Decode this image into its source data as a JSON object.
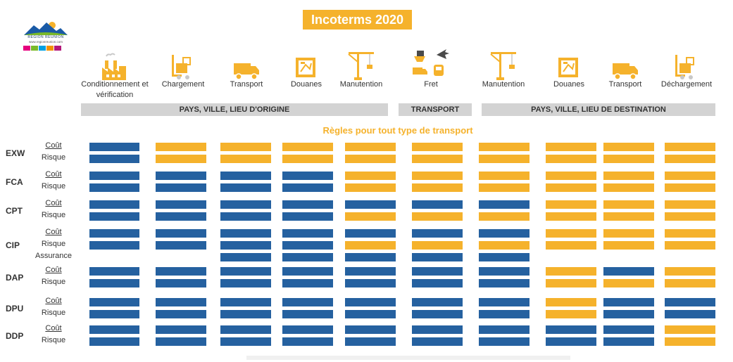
{
  "title": "Incoterms 2020",
  "logo": {
    "name": "RÉGION RÉUNION",
    "url": "www.regionreunion.com",
    "colors": [
      "#e6007e",
      "#7ab929",
      "#00a0e1",
      "#f39200",
      "#b3197a"
    ]
  },
  "columns": [
    {
      "label": "Conditionnement et vérification",
      "icon": "factory-icon"
    },
    {
      "label": "Chargement",
      "icon": "forklift-icon"
    },
    {
      "label": "Transport",
      "icon": "truck-icon"
    },
    {
      "label": "Douanes",
      "icon": "customs-document-icon"
    },
    {
      "label": "Manutention",
      "icon": "crane-icon"
    },
    {
      "label": "Fret",
      "icon": "multimodal-freight-icon"
    },
    {
      "label": "Manutention",
      "icon": "crane-icon"
    },
    {
      "label": "Douanes",
      "icon": "customs-document-icon"
    },
    {
      "label": "Transport",
      "icon": "truck-icon"
    },
    {
      "label": "Déchargement",
      "icon": "forklift-icon"
    }
  ],
  "bands": {
    "origin": "PAYS, VILLE, LIEU D'ORIGINE",
    "transport": "TRANSPORT",
    "destination": "PAYS, VILLE, LIEU DE DESTINATION"
  },
  "subtitle": "Règles pour tout type de transport",
  "legend_colors": {
    "seller": "#2561a0",
    "buyer": "#f5b22c"
  },
  "rows": [
    {
      "term": "EXW",
      "labels": [
        "Coût",
        "Risque"
      ],
      "lines": [
        [
          "B",
          "Y",
          "Y",
          "Y",
          "Y",
          "Y",
          "Y",
          "Y",
          "Y",
          "Y"
        ],
        [
          "B",
          "Y",
          "Y",
          "Y",
          "Y",
          "Y",
          "Y",
          "Y",
          "Y",
          "Y"
        ]
      ]
    },
    {
      "term": "FCA",
      "labels": [
        "Coût",
        "Risque"
      ],
      "lines": [
        [
          "B",
          "B",
          "B",
          "B",
          "Y",
          "Y",
          "Y",
          "Y",
          "Y",
          "Y"
        ],
        [
          "B",
          "B",
          "B",
          "B",
          "Y",
          "Y",
          "Y",
          "Y",
          "Y",
          "Y"
        ]
      ]
    },
    {
      "term": "CPT",
      "labels": [
        "Coût",
        "Risque"
      ],
      "lines": [
        [
          "B",
          "B",
          "B",
          "B",
          "B",
          "B",
          "B",
          "Y",
          "Y",
          "Y"
        ],
        [
          "B",
          "B",
          "B",
          "B",
          "Y",
          "Y",
          "Y",
          "Y",
          "Y",
          "Y"
        ]
      ]
    },
    {
      "term": "CIP",
      "labels": [
        "Coût",
        "Risque",
        "Assurance"
      ],
      "lines": [
        [
          "B",
          "B",
          "B",
          "B",
          "B",
          "B",
          "B",
          "Y",
          "Y",
          "Y"
        ],
        [
          "B",
          "B",
          "B",
          "B",
          "Y",
          "Y",
          "Y",
          "Y",
          "Y",
          "Y"
        ],
        [
          "",
          "",
          "B",
          "B",
          "B",
          "B",
          "B",
          "",
          "",
          ""
        ]
      ]
    },
    {
      "term": "DAP",
      "labels": [
        "Coût",
        "Risque"
      ],
      "lines": [
        [
          "B",
          "B",
          "B",
          "B",
          "B",
          "B",
          "B",
          "Y",
          "B",
          "Y"
        ],
        [
          "B",
          "B",
          "B",
          "B",
          "B",
          "B",
          "B",
          "Y",
          "Y",
          "Y"
        ]
      ]
    },
    {
      "term": "DPU",
      "labels": [
        "Coût",
        "Risque"
      ],
      "lines": [
        [
          "B",
          "B",
          "B",
          "B",
          "B",
          "B",
          "B",
          "Y",
          "B",
          "B"
        ],
        [
          "B",
          "B",
          "B",
          "B",
          "B",
          "B",
          "B",
          "Y",
          "B",
          "B"
        ]
      ]
    },
    {
      "term": "DDP",
      "labels": [
        "Coût",
        "Risque"
      ],
      "lines": [
        [
          "B",
          "B",
          "B",
          "B",
          "B",
          "B",
          "B",
          "B",
          "B",
          "Y"
        ],
        [
          "B",
          "B",
          "B",
          "B",
          "B",
          "B",
          "B",
          "B",
          "B",
          "Y"
        ]
      ]
    }
  ]
}
